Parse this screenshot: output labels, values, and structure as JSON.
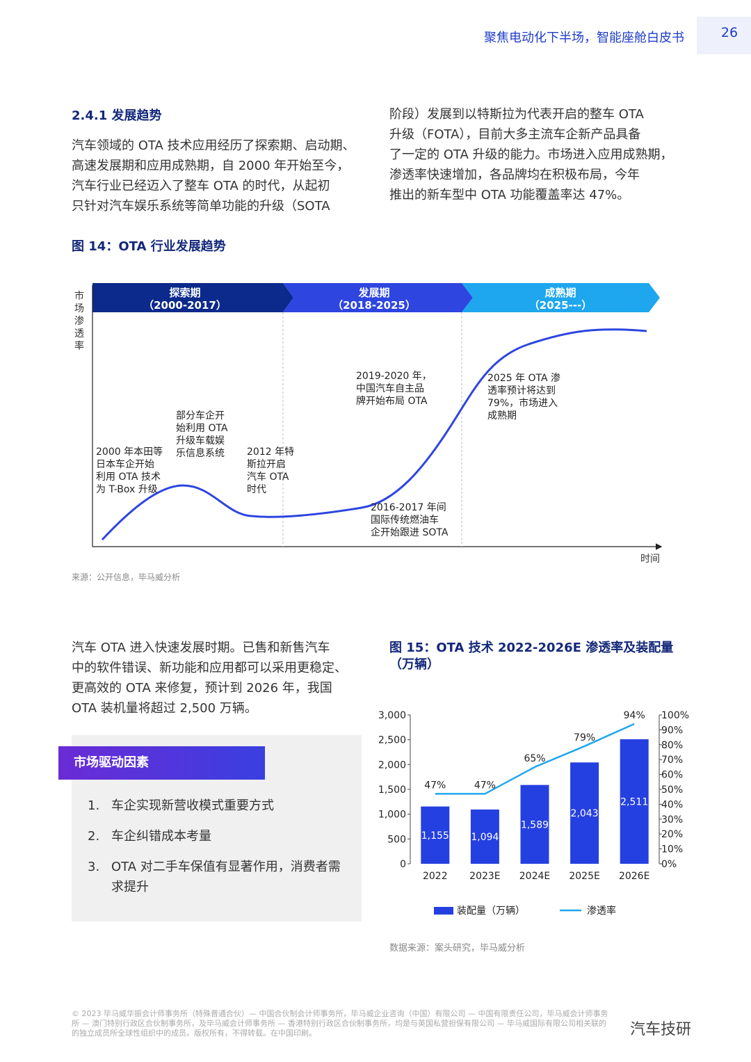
{
  "header": {
    "title": "聚焦电动化下半场，智能座舱白皮书",
    "page_number": "26"
  },
  "section": {
    "heading": "2.4.1 发展趋势",
    "para_left": [
      "汽车领域的 OTA 技术应用经历了探索期、启动期、",
      "高速发展期和应用成熟期，自 2000 年开始至今，",
      "汽车行业已经迈入了整车 OTA 的时代，从起初",
      "只针对汽车娱乐系统等简单功能的升级（SOTA"
    ],
    "para_right": [
      "阶段）发展到以特斯拉为代表开启的整车 OTA",
      "升级（FOTA），目前大多主流车企新产品具备",
      "了一定的 OTA 升级的能力。市场进入应用成熟期，",
      "渗透率快速增加，各品牌均在积极布局，今年",
      "推出的新车型中 OTA 功能覆盖率达 47%。"
    ]
  },
  "fig14": {
    "title": "图 14：OTA 行业发展趋势",
    "y_label_chars": [
      "市",
      "场",
      "渗",
      "透",
      "率"
    ],
    "x_label": "时间",
    "phases": [
      {
        "name": "探索期",
        "years": "（2000-2017）",
        "color": "#0c2a8c"
      },
      {
        "name": "发展期",
        "years": "（2018-2025）",
        "color": "#2e45e0"
      },
      {
        "name": "成熟期",
        "years": "（2025---）",
        "color": "#1ea6ee"
      }
    ],
    "annotations": {
      "a1": [
        "2000 年本田等",
        "日本车企开始",
        "利用 OTA 技术",
        "为 T-Box 升级"
      ],
      "a2": [
        "部分车企开",
        "始利用 OTA",
        "升级车载娱",
        "乐信息系统"
      ],
      "a3": [
        "2012 年特",
        "斯拉开启",
        "汽车 OTA",
        "时代"
      ],
      "a4": [
        "2016-2017 年间",
        "国际传统燃油车",
        "企开始跟进 SOTA"
      ],
      "a5": [
        "2019-2020 年，",
        "中国汽车自主品",
        "牌开始布局 OTA"
      ],
      "a6": [
        "2025 年 OTA 渗",
        "透率预计将达到",
        "79%，市场进入",
        "成熟期"
      ]
    },
    "source": "来源：公开信息，毕马威分析"
  },
  "section2": {
    "para": [
      "汽车 OTA 进入快速发展时期。已售和新售汽车",
      "中的软件错误、新功能和应用都可以采用更稳定、",
      "更高效的 OTA 来修复，预计到 2026 年，我国",
      "OTA 装机量将超过 2,500 万辆。"
    ]
  },
  "drivers": {
    "label": "市场驱动因素",
    "items": [
      {
        "n": "1.",
        "text": "车企实现新营收模式重要方式"
      },
      {
        "n": "2.",
        "text": "车企纠错成本考量"
      },
      {
        "n": "3.",
        "text": "OTA 对二手车保值有显著作用，消费者需求提升"
      }
    ]
  },
  "fig15": {
    "title_line1": "图 15：OTA 技术 2022-2026E 渗透率及装配量",
    "title_line2": "（万辆）",
    "source": "数据来源：案头研究，毕马威分析"
  },
  "chart_data": {
    "type": "bar",
    "categories": [
      "2022",
      "2023E",
      "2024E",
      "2025E",
      "2026E"
    ],
    "series": [
      {
        "name": "装配量（万辆）",
        "type": "bar",
        "axis": "left",
        "values": [
          1155,
          1094,
          1589,
          2043,
          2511
        ],
        "labels": [
          "1,155",
          "1,094",
          "1,589",
          "2,043",
          "2,511"
        ],
        "color": "#2540e0"
      },
      {
        "name": "渗透率",
        "type": "line",
        "axis": "right",
        "values": [
          47,
          47,
          65,
          79,
          94
        ],
        "labels": [
          "47%",
          "47%",
          "65%",
          "79%",
          "94%"
        ],
        "color": "#1ea6ee"
      }
    ],
    "ylim_left": [
      0,
      3000
    ],
    "yticks_left": [
      "0",
      "500",
      "1,000",
      "1,500",
      "2,000",
      "2,500",
      "3,000"
    ],
    "ylim_right": [
      0,
      100
    ],
    "yticks_right": [
      "0%",
      "10%",
      "20%",
      "30%",
      "40%",
      "50%",
      "60%",
      "70%",
      "80%",
      "90%",
      "100%"
    ],
    "legend_position": "bottom"
  },
  "footer": {
    "lines": [
      "© 2023 毕马威华振会计师事务所（特殊普通合伙）— 中国合伙制会计师事务所，毕马威企业咨询（中国）有限公司 — 中国有限责任公司，毕马威会计师事务",
      "所 — 澳门特别行政区合伙制事务所，及毕马威会计师事务所 — 香港特别行政区合伙制事务所，均是与英国私营担保有限公司 — 毕马威国际有限公司相关联的",
      "的独立成员所全球性组织中的成员。版权所有，不得转载。在中国印刷。"
    ],
    "watermark": "汽车技研"
  }
}
